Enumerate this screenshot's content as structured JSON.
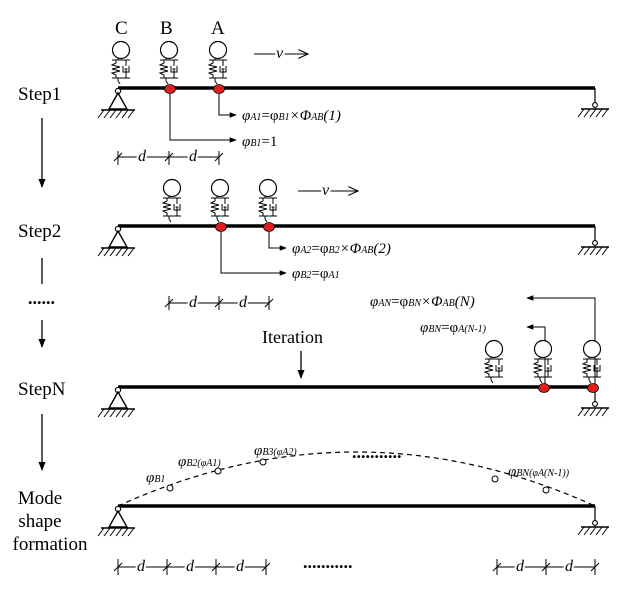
{
  "labels": {
    "C": "C",
    "B": "B",
    "A": "A",
    "velocity": "v",
    "iteration": "Iteration",
    "dots_left": "......",
    "dots_top": "...........",
    "dots_bottom": "..........."
  },
  "steps": {
    "step1": "Step1",
    "step2": "Step2",
    "stepN": "StepN",
    "mode1": "Mode",
    "mode2": "shape",
    "mode3": "formation"
  },
  "equations": {
    "e1": {
      "p1": "φ",
      "s1": "A1",
      "p2": "=φ",
      "s2": "B1",
      "p3": "×Φ",
      "s3": "AB",
      "p4": "(1)"
    },
    "e2": {
      "p1": "φ",
      "s1": "B1",
      "p2": "=1"
    },
    "e3": {
      "p1": "φ",
      "s1": "A2",
      "p2": "=φ",
      "s2": "B2",
      "p3": "×Φ",
      "s3": "AB",
      "p4": "(2)"
    },
    "e4": {
      "p1": "φ",
      "s1": "B2",
      "p2": "=φ",
      "s2": "A1"
    },
    "e5": {
      "p1": "φ",
      "s1": "AN",
      "p2": "=φ",
      "s2": "BN",
      "p3": "×Φ",
      "s3": "AB",
      "p4": "(N)"
    },
    "e6": {
      "p1": "φ",
      "s1": "BN",
      "p2": "=φ",
      "s2": "A(N-1)"
    }
  },
  "mode_labels": {
    "m1": {
      "p": "φ",
      "s": "B1"
    },
    "m2": {
      "p": "φ",
      "s": "B2(φA1)"
    },
    "m3": {
      "p": "φ",
      "s": "B3(φA2)"
    },
    "m4": {
      "p": "φ",
      "s": "BN(φA(N-1))"
    }
  },
  "dimension_label": "d"
}
